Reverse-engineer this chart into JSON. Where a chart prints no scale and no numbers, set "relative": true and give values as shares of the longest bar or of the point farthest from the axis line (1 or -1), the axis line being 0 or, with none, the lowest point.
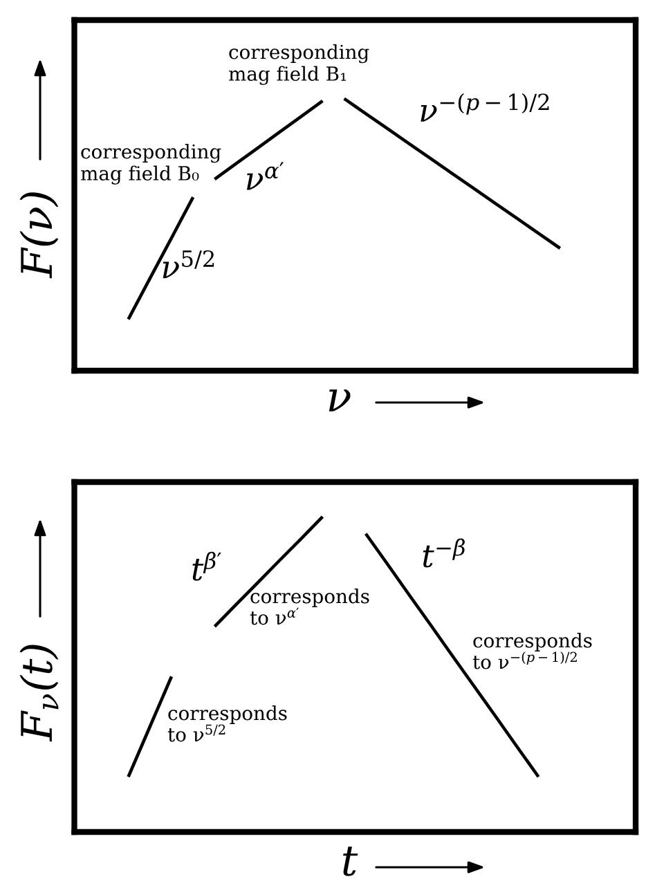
{
  "chart_data": [
    {
      "type": "line",
      "relative": true,
      "tick_labels": false,
      "xlabel": "ν",
      "ylabel": "F(ν)",
      "annotations": [
        "corresponding\nmag field B₁",
        "corresponding\nmag field B₀"
      ],
      "categories": [
        null,
        null,
        null,
        null,
        null,
        null,
        null,
        null,
        null,
        null,
        null,
        null,
        null,
        null,
        null,
        null,
        null,
        null,
        null,
        null,
        null,
        null,
        null,
        null,
        null,
        null
      ],
      "series": [
        {
          "name": "ν$^{5/2}$",
          "color": "#000000",
          "values": [
            null,
            null,
            0.189,
            0.339,
            0.488,
            0.638,
            null,
            null,
            null,
            null,
            null,
            null,
            null,
            null,
            null,
            null,
            null,
            null,
            null,
            null,
            null,
            null,
            null,
            null,
            null,
            null
          ]
        },
        {
          "name": "ν$^{α′}$",
          "color": "#000000",
          "values": [
            null,
            null,
            null,
            null,
            null,
            null,
            0.704,
            0.762,
            0.819,
            0.877,
            0.934,
            0.992,
            null,
            null,
            null,
            null,
            null,
            null,
            null,
            null,
            null,
            null,
            null,
            null,
            null,
            null
          ]
        },
        {
          "name": "ν$^{−(p−1)/2}$",
          "color": "#000000",
          "values": [
            null,
            null,
            null,
            null,
            null,
            null,
            null,
            null,
            null,
            null,
            null,
            null,
            1.0,
            0.945,
            0.89,
            0.835,
            0.78,
            0.725,
            0.67,
            0.615,
            0.56,
            0.505,
            0.45,
            null,
            null,
            null
          ]
        }
      ]
    },
    {
      "type": "line",
      "relative": true,
      "tick_labels": false,
      "xlabel": "t",
      "ylabel": "F$_{ν}$(t)",
      "annotations": [
        "corresponds\nto ν$^{α′}$",
        "corresponds\nto ν$^{5/2}$",
        "corresponds\nto ν$^{−(p−1)/2}$"
      ],
      "categories": [
        null,
        null,
        null,
        null,
        null,
        null,
        null,
        null,
        null,
        null,
        null,
        null,
        null,
        null,
        null,
        null,
        null,
        null,
        null,
        null,
        null,
        null,
        null,
        null,
        null,
        null
      ],
      "series": [
        {
          "color": "#000000",
          "values": [
            null,
            null,
            0.175,
            0.334,
            0.493,
            null,
            null,
            null,
            null,
            null,
            null,
            null,
            null,
            null,
            null,
            null,
            null,
            null,
            null,
            null,
            null,
            null,
            null,
            null,
            null,
            null
          ]
        },
        {
          "name": "t$^{β′}$",
          "color": "#000000",
          "values": [
            null,
            null,
            null,
            null,
            null,
            null,
            0.652,
            0.722,
            0.791,
            0.861,
            0.93,
            1.0,
            null,
            null,
            null,
            null,
            null,
            null,
            null,
            null,
            null,
            null,
            null,
            null,
            null,
            null
          ]
        },
        {
          "name": "t$^{−β}$",
          "color": "#000000",
          "values": [
            null,
            null,
            null,
            null,
            null,
            null,
            null,
            null,
            null,
            null,
            null,
            null,
            null,
            0.946,
            0.85,
            0.753,
            0.657,
            0.56,
            0.464,
            0.368,
            0.271,
            0.175,
            null,
            null,
            null,
            null
          ]
        }
      ]
    }
  ]
}
